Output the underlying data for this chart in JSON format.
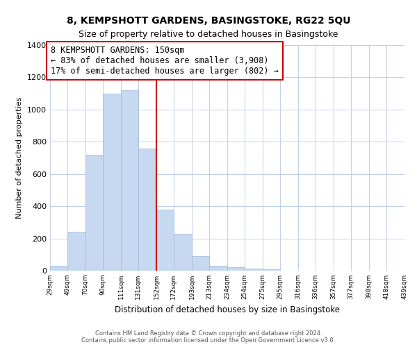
{
  "title": "8, KEMPSHOTT GARDENS, BASINGSTOKE, RG22 5QU",
  "subtitle": "Size of property relative to detached houses in Basingstoke",
  "xlabel": "Distribution of detached houses by size in Basingstoke",
  "ylabel": "Number of detached properties",
  "bar_edges": [
    29,
    49,
    70,
    90,
    111,
    131,
    152,
    172,
    193,
    213,
    234,
    254,
    275,
    295,
    316,
    336,
    357,
    377,
    398,
    418,
    439
  ],
  "bar_heights": [
    30,
    240,
    720,
    1100,
    1120,
    760,
    380,
    230,
    90,
    30,
    20,
    15,
    10,
    0,
    0,
    0,
    0,
    0,
    0,
    0
  ],
  "bar_color": "#c6d9f0",
  "bar_edgecolor": "#a0b8d8",
  "vline_x": 152,
  "vline_color": "#cc0000",
  "annotation_title": "8 KEMPSHOTT GARDENS: 150sqm",
  "annotation_line1": "← 83% of detached houses are smaller (3,908)",
  "annotation_line2": "17% of semi-detached houses are larger (802) →",
  "annotation_box_edgecolor": "#cc0000",
  "ylim": [
    0,
    1400
  ],
  "yticks": [
    0,
    200,
    400,
    600,
    800,
    1000,
    1200,
    1400
  ],
  "tick_labels": [
    "29sqm",
    "49sqm",
    "70sqm",
    "90sqm",
    "111sqm",
    "131sqm",
    "152sqm",
    "172sqm",
    "193sqm",
    "213sqm",
    "234sqm",
    "254sqm",
    "275sqm",
    "295sqm",
    "316sqm",
    "336sqm",
    "357sqm",
    "377sqm",
    "398sqm",
    "418sqm",
    "439sqm"
  ],
  "footer_line1": "Contains HM Land Registry data © Crown copyright and database right 2024.",
  "footer_line2": "Contains public sector information licensed under the Open Government Licence v3.0.",
  "background_color": "#ffffff",
  "grid_color": "#c0d0e8",
  "title_fontsize": 10,
  "subtitle_fontsize": 9,
  "ann_fontsize": 8.5
}
